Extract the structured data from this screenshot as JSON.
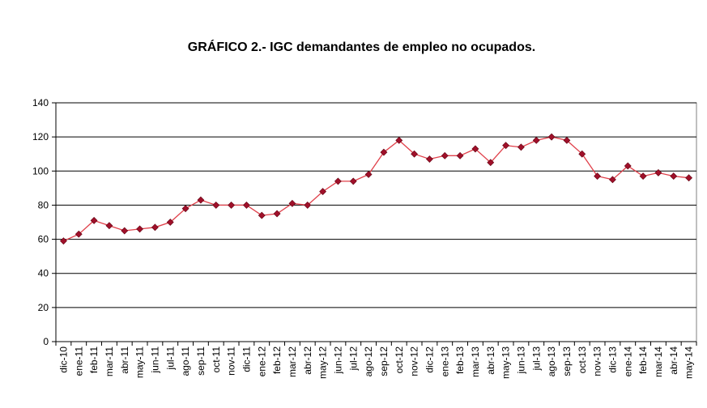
{
  "chart_data": {
    "type": "line",
    "title": "GRÁFICO 2.- IGC demandantes de empleo no ocupados.",
    "xlabel": "",
    "ylabel": "",
    "ylim": [
      0,
      140
    ],
    "yticks": [
      "0",
      "20",
      "40",
      "60",
      "80",
      "100",
      "120",
      "140"
    ],
    "grid": true,
    "line_color": "#e0404a",
    "marker_color": "#a0102a",
    "categories": [
      "dic-10",
      "ene-11",
      "feb-11",
      "mar-11",
      "abr-11",
      "may-11",
      "jun-11",
      "jul-11",
      "ago-11",
      "sep-11",
      "oct-11",
      "nov-11",
      "dic-11",
      "ene-12",
      "feb-12",
      "mar-12",
      "abr-12",
      "may-12",
      "jun-12",
      "jul-12",
      "ago-12",
      "sep-12",
      "oct-12",
      "nov-12",
      "dic-12",
      "ene-13",
      "feb-13",
      "mar-13",
      "abr-13",
      "may-13",
      "jun-13",
      "jul-13",
      "ago-13",
      "sep-13",
      "oct-13",
      "nov-13",
      "dic-13",
      "ene-14",
      "feb-14",
      "mar-14",
      "abr-14",
      "may-14"
    ],
    "values": [
      59,
      63,
      71,
      68,
      65,
      66,
      67,
      70,
      78,
      83,
      80,
      80,
      80,
      74,
      75,
      81,
      80,
      88,
      94,
      94,
      98,
      111,
      118,
      110,
      107,
      109,
      109,
      113,
      105,
      115,
      114,
      118,
      120,
      118,
      110,
      97,
      95,
      103,
      97,
      99,
      97,
      96
    ]
  }
}
